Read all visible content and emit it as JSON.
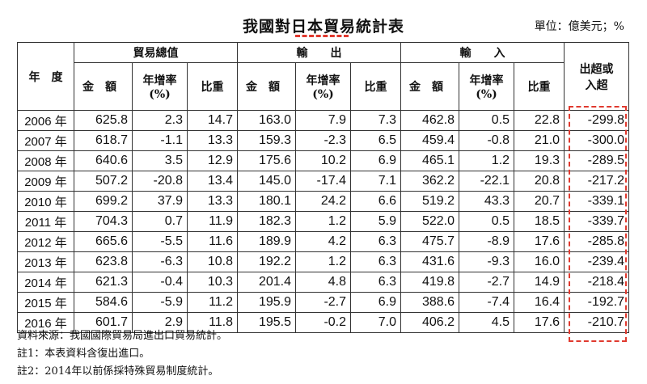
{
  "title": "我國對日本貿易統計表",
  "unit": "單位：億美元；%",
  "headers": {
    "year": "年　度",
    "total": "貿易總值",
    "export": "輸　　出",
    "import": "輸　　入",
    "surplus_line1": "出超或",
    "surplus_line2": "入超",
    "amount": "金　額",
    "growth_line1": "年增率",
    "growth_line2": "(%)",
    "share": "比重"
  },
  "rows": [
    {
      "year": "2006 年",
      "total_amount": "625.8",
      "total_growth": "2.3",
      "total_share": "14.7",
      "export_amount": "163.0",
      "export_growth": "7.9",
      "export_share": "7.3",
      "import_amount": "462.8",
      "import_growth": "0.5",
      "import_share": "22.8",
      "surplus": "-299.8"
    },
    {
      "year": "2007 年",
      "total_amount": "618.7",
      "total_growth": "-1.1",
      "total_share": "13.3",
      "export_amount": "159.3",
      "export_growth": "-2.3",
      "export_share": "6.5",
      "import_amount": "459.4",
      "import_growth": "-0.8",
      "import_share": "21.0",
      "surplus": "-300.0"
    },
    {
      "year": "2008 年",
      "total_amount": "640.6",
      "total_growth": "3.5",
      "total_share": "12.9",
      "export_amount": "175.6",
      "export_growth": "10.2",
      "export_share": "6.9",
      "import_amount": "465.1",
      "import_growth": "1.2",
      "import_share": "19.3",
      "surplus": "-289.5"
    },
    {
      "year": "2009 年",
      "total_amount": "507.2",
      "total_growth": "-20.8",
      "total_share": "13.4",
      "export_amount": "145.0",
      "export_growth": "-17.4",
      "export_share": "7.1",
      "import_amount": "362.2",
      "import_growth": "-22.1",
      "import_share": "20.8",
      "surplus": "-217.2"
    },
    {
      "year": "2010 年",
      "total_amount": "699.2",
      "total_growth": "37.9",
      "total_share": "13.3",
      "export_amount": "180.1",
      "export_growth": "24.2",
      "export_share": "6.6",
      "import_amount": "519.2",
      "import_growth": "43.3",
      "import_share": "20.7",
      "surplus": "-339.1"
    },
    {
      "year": "2011 年",
      "total_amount": "704.3",
      "total_growth": "0.7",
      "total_share": "11.9",
      "export_amount": "182.3",
      "export_growth": "1.2",
      "export_share": "5.9",
      "import_amount": "522.0",
      "import_growth": "0.5",
      "import_share": "18.5",
      "surplus": "-339.7"
    },
    {
      "year": "2012 年",
      "total_amount": "665.6",
      "total_growth": "-5.5",
      "total_share": "11.6",
      "export_amount": "189.9",
      "export_growth": "4.2",
      "export_share": "6.3",
      "import_amount": "475.7",
      "import_growth": "-8.9",
      "import_share": "17.6",
      "surplus": "-285.8"
    },
    {
      "year": "2013 年",
      "total_amount": "623.8",
      "total_growth": "-6.3",
      "total_share": "10.8",
      "export_amount": "192.2",
      "export_growth": "1.2",
      "export_share": "6.3",
      "import_amount": "431.6",
      "import_growth": "-9.3",
      "import_share": "16.0",
      "surplus": "-239.4"
    },
    {
      "year": "2014 年",
      "total_amount": "621.3",
      "total_growth": "-0.4",
      "total_share": "10.3",
      "export_amount": "201.4",
      "export_growth": "4.8",
      "export_share": "6.3",
      "import_amount": "419.8",
      "import_growth": "-2.7",
      "import_share": "14.9",
      "surplus": "-218.4"
    },
    {
      "year": "2015 年",
      "total_amount": "584.6",
      "total_growth": "-5.9",
      "total_share": "11.2",
      "export_amount": "195.9",
      "export_growth": "-2.7",
      "export_share": "6.9",
      "import_amount": "388.6",
      "import_growth": "-7.4",
      "import_share": "16.4",
      "surplus": "-192.7"
    },
    {
      "year": "2016 年",
      "total_amount": "601.7",
      "total_growth": "2.9",
      "total_share": "11.8",
      "export_amount": "195.5",
      "export_growth": "-0.2",
      "export_share": "7.0",
      "import_amount": "406.2",
      "import_growth": "4.5",
      "import_share": "17.6",
      "surplus": "-210.7"
    }
  ],
  "notes": {
    "source": "資料來源：我國國際貿易局進出口貿易統計。",
    "note1": "註1：本表資料含復出進口。",
    "note2": "註2：2014年以前係採特殊貿易制度統計。"
  },
  "colors": {
    "highlight": "#e03a2f"
  }
}
